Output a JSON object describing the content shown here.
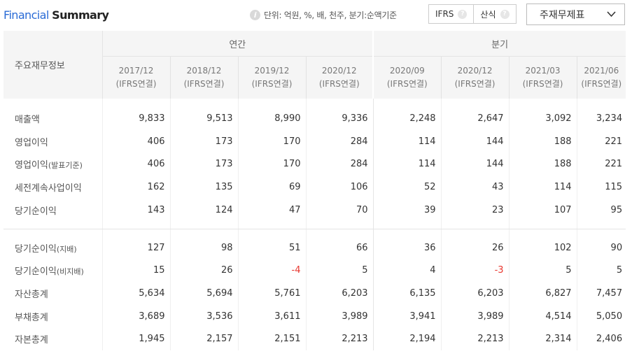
{
  "header": {
    "title_part1": "Financial",
    "title_part2": "Summary",
    "unit_text": "단위: 억원, %, 배, 천주, 분기:순액기준",
    "toggle": [
      {
        "label": "IFRS"
      },
      {
        "label": "산식"
      }
    ],
    "select_value": "주재무제표"
  },
  "table": {
    "label_header": "주요재무정보",
    "group_annual": "연간",
    "group_quarter": "분기",
    "periods": [
      {
        "date": "2017/12",
        "basis": "(IFRS연결)"
      },
      {
        "date": "2018/12",
        "basis": "(IFRS연결)"
      },
      {
        "date": "2019/12",
        "basis": "(IFRS연결)"
      },
      {
        "date": "2020/12",
        "basis": "(IFRS연결)"
      },
      {
        "date": "2020/09",
        "basis": "(IFRS연결)"
      },
      {
        "date": "2020/12",
        "basis": "(IFRS연결)"
      },
      {
        "date": "2021/03",
        "basis": "(IFRS연결)"
      },
      {
        "date": "2021/06",
        "basis": "(IFRS연결)"
      }
    ],
    "rows": [
      {
        "label": "매출액",
        "sub": "",
        "values": [
          "9,833",
          "9,513",
          "8,990",
          "9,336",
          "2,248",
          "2,647",
          "3,092",
          "3,234"
        ]
      },
      {
        "label": "영업이익",
        "sub": "",
        "values": [
          "406",
          "173",
          "170",
          "284",
          "114",
          "144",
          "188",
          "221"
        ]
      },
      {
        "label": "영업이익",
        "sub": "(발표기준)",
        "values": [
          "406",
          "173",
          "170",
          "284",
          "114",
          "144",
          "188",
          "221"
        ]
      },
      {
        "label": "세전계속사업이익",
        "sub": "",
        "values": [
          "162",
          "135",
          "69",
          "106",
          "52",
          "43",
          "114",
          "115"
        ]
      },
      {
        "label": "당기순이익",
        "sub": "",
        "values": [
          "143",
          "124",
          "47",
          "70",
          "39",
          "23",
          "107",
          "95"
        ]
      },
      {
        "label": "당기순이익",
        "sub": "(지배)",
        "values": [
          "127",
          "98",
          "51",
          "66",
          "36",
          "26",
          "102",
          "90"
        ]
      },
      {
        "label": "당기순이익",
        "sub": "(비지배)",
        "values": [
          "15",
          "26",
          "-4",
          "5",
          "4",
          "-3",
          "5",
          "5"
        ]
      },
      {
        "label": "자산총계",
        "sub": "",
        "values": [
          "5,634",
          "5,694",
          "5,761",
          "6,203",
          "6,135",
          "6,203",
          "6,827",
          "7,457"
        ]
      },
      {
        "label": "부채총계",
        "sub": "",
        "values": [
          "3,689",
          "3,536",
          "3,611",
          "3,989",
          "3,941",
          "3,989",
          "4,514",
          "5,050"
        ]
      },
      {
        "label": "자본총계",
        "sub": "",
        "values": [
          "1,945",
          "2,157",
          "2,151",
          "2,213",
          "2,194",
          "2,213",
          "2,314",
          "2,406"
        ]
      }
    ]
  },
  "colors": {
    "accent": "#2a6bd6",
    "negative": "#e8372f"
  }
}
